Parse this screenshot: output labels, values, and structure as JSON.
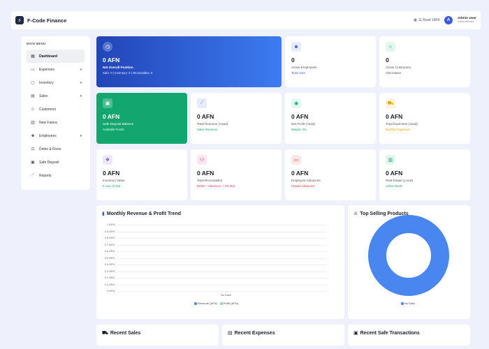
{
  "app": {
    "title": "F-Code Finance"
  },
  "header": {
    "date": "11 Asad 1404",
    "user_initial": "A",
    "user_name": "Admin User",
    "user_role": "Administrator"
  },
  "sidebar": {
    "heading": "MAIN MENU",
    "items": [
      {
        "label": "Dashboard",
        "icon": "grid-icon"
      },
      {
        "label": "Expenses",
        "icon": "wallet-icon"
      },
      {
        "label": "Inventory",
        "icon": "box-icon"
      },
      {
        "label": "Sales",
        "icon": "receipt-icon"
      },
      {
        "label": "Customers",
        "icon": "users-icon"
      },
      {
        "label": "New Fatora",
        "icon": "invoice-icon"
      },
      {
        "label": "Employees",
        "icon": "team-icon"
      },
      {
        "label": "Debts & Fines",
        "icon": "scale-icon"
      },
      {
        "label": "Safe Deposit",
        "icon": "safe-icon"
      },
      {
        "label": "Reports",
        "icon": "chart-icon"
      }
    ]
  },
  "cards": {
    "net": {
      "value": "0 AFN",
      "label": "Net Overall Position",
      "sub": "Safe: 0 | Inventory: 0 | Receivables: 0"
    },
    "employees": {
      "value": "0",
      "label": "Active Employees",
      "sub": "Team Size"
    },
    "customers": {
      "value": "0",
      "label": "Active Customers",
      "sub": "Client Base"
    },
    "safe": {
      "value": "0 AFN",
      "label": "Safe Deposit Balance",
      "sub": "Available Funds"
    },
    "revenue": {
      "value": "0 AFN",
      "label": "Total Revenue (Asad)",
      "sub": "Sales Revenue"
    },
    "profit": {
      "value": "0 AFN",
      "label": "Net Profit (Asad)",
      "sub": "Margin: 0%"
    },
    "expenses": {
      "value": "0 AFN",
      "label": "Total Expenses (Asad)",
      "sub": "Monthly Expenses"
    },
    "inventory": {
      "value": "0 AFN",
      "label": "Inventory Value",
      "sub": "0 Low | 0 Out"
    },
    "receivables": {
      "value": "0 AFN",
      "label": "Total Receivables",
      "sub": "Debts + Advances + 0% Due"
    },
    "advances": {
      "value": "0 AFN",
      "label": "Employee Advances",
      "sub": "Unpaid Advances"
    },
    "realestate": {
      "value": "0 AFN",
      "label": "Real Estate (Local)",
      "sub": "Active Deals"
    }
  },
  "revenue_panel": {
    "title": "Monthly Revenue & Profit Trend",
    "yticks": [
      "1 AFN",
      "0.9 AFN",
      "0.8 AFN",
      "0.7 AFN",
      "0.6 AFN",
      "0.5 AFN",
      "0.4 AFN",
      "0.3 AFN",
      "0.2 AFN",
      "0.1 AFN",
      "0 AFN"
    ],
    "no_data": "No Data",
    "legend": [
      "Revenue (AFN)",
      "Profit (AFN)"
    ]
  },
  "top_panel": {
    "title": "Top Selling Products",
    "legend": "No Data"
  },
  "bottom": {
    "sales": "Recent Sales",
    "expenses": "Recent Expenses",
    "safe": "Recent Safe Transactions"
  },
  "colors": {
    "accent": "#3b5bdb",
    "green": "#13a66e",
    "donut": "#4a86f0"
  }
}
